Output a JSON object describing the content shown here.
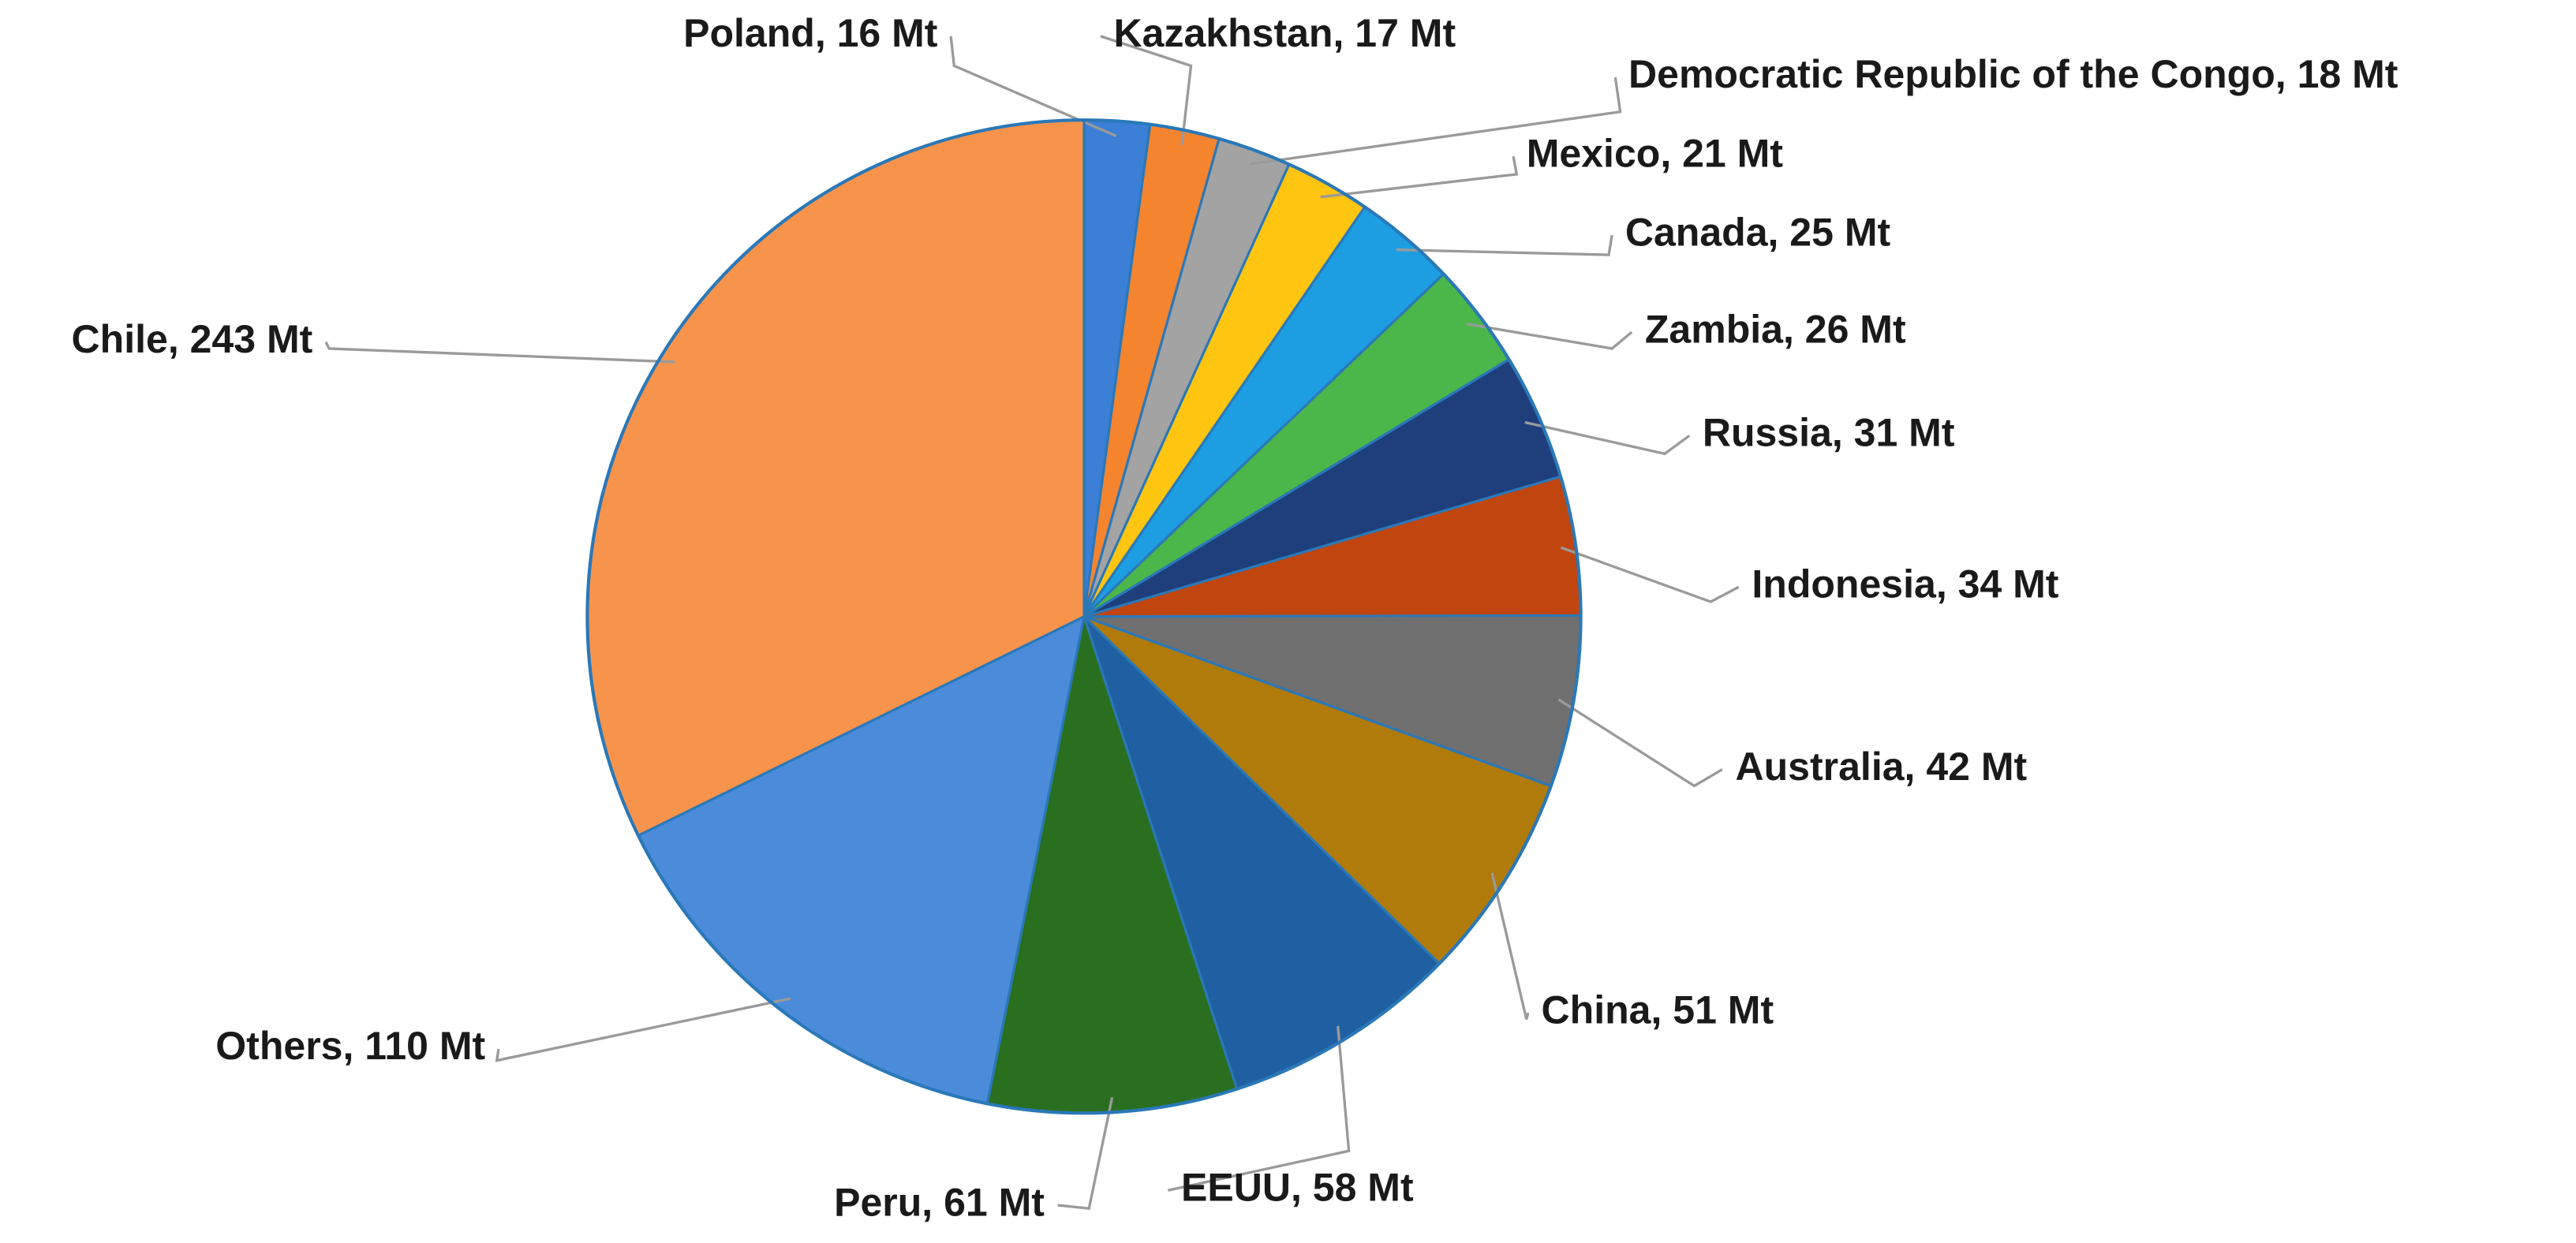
{
  "chart_data": {
    "type": "pie",
    "values": [
      16,
      17,
      18,
      21,
      25,
      26,
      31,
      34,
      42,
      51,
      58,
      61,
      110,
      243
    ],
    "value_labels": [
      "Poland, 16 Mt",
      "Kazakhstan, 17 Mt",
      "Democratic Republic of the Congo, 18 Mt",
      "Mexico, 21 Mt",
      "Canada, 25 Mt",
      "Zambia, 26 Mt",
      "Russia, 31 Mt",
      "Indonesia, 34 Mt",
      "Australia, 42 Mt",
      "China, 51 Mt",
      "EEUU, 58 Mt",
      "Peru, 61 Mt",
      "Others, 110 Mt",
      "Chile, 243 Mt"
    ],
    "colors": [
      "#3b7fd6",
      "#f5842f",
      "#a3a3a3",
      "#ffc510",
      "#1d9ee2",
      "#4bb649",
      "#1e3f7c",
      "#c0450f",
      "#6f6f6f",
      "#b17b0b",
      "#1f60a2",
      "#2a6f1f",
      "#4a8cda",
      "#f8934c"
    ]
  }
}
